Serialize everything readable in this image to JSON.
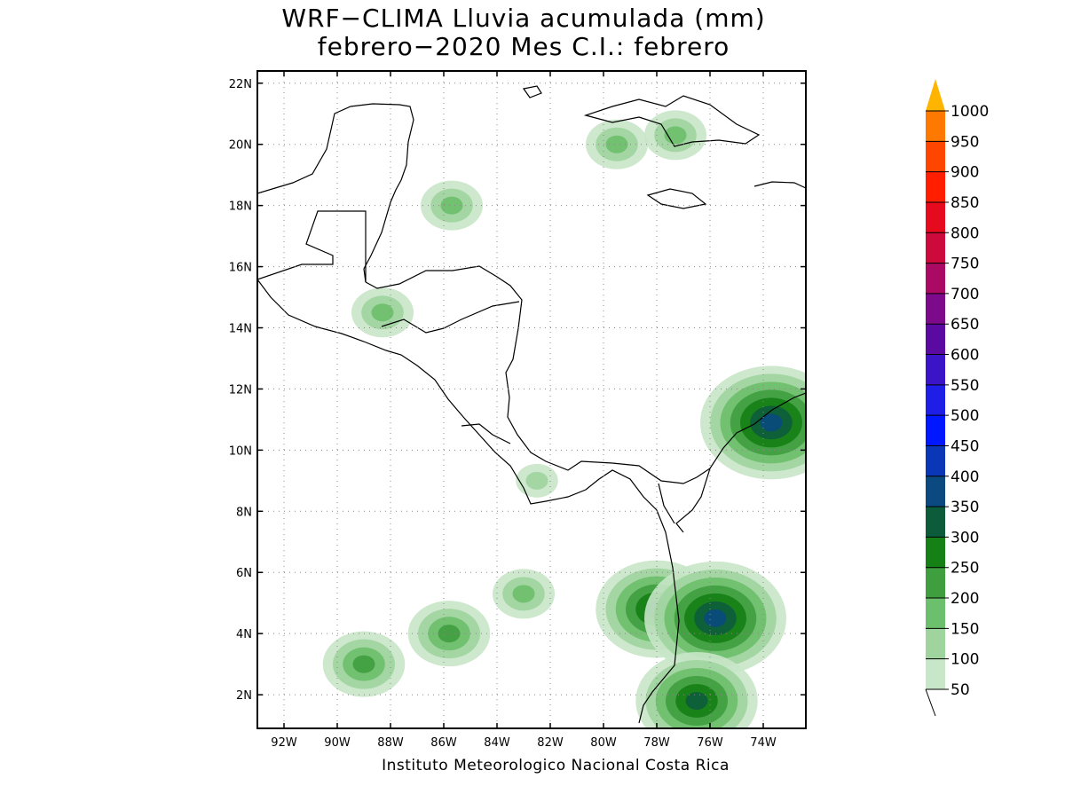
{
  "title": {
    "line1": "WRF−CLIMA Lluvia acumulada (mm)",
    "line2": "febrero−2020 Mes C.I.: febrero"
  },
  "credit": "Instituto Meteorologico Nacional Costa Rica",
  "map": {
    "lon_range": [
      -93.0,
      -72.4
    ],
    "lat_range": [
      0.9,
      22.4
    ],
    "lat_ticks": [
      {
        "value": 22,
        "label": "22N"
      },
      {
        "value": 20,
        "label": "20N"
      },
      {
        "value": 18,
        "label": "18N"
      },
      {
        "value": 16,
        "label": "16N"
      },
      {
        "value": 14,
        "label": "14N"
      },
      {
        "value": 12,
        "label": "12N"
      },
      {
        "value": 10,
        "label": "10N"
      },
      {
        "value": 8,
        "label": "8N"
      },
      {
        "value": 6,
        "label": "6N"
      },
      {
        "value": 4,
        "label": "4N"
      },
      {
        "value": 2,
        "label": "2N"
      }
    ],
    "lon_ticks": [
      {
        "value": -92,
        "label": "92W"
      },
      {
        "value": -90,
        "label": "90W"
      },
      {
        "value": -88,
        "label": "88W"
      },
      {
        "value": -86,
        "label": "86W"
      },
      {
        "value": -84,
        "label": "84W"
      },
      {
        "value": -82,
        "label": "82W"
      },
      {
        "value": -80,
        "label": "80W"
      },
      {
        "value": -78,
        "label": "78W"
      },
      {
        "value": -76,
        "label": "76W"
      },
      {
        "value": -74,
        "label": "74W"
      }
    ],
    "grid": "dotted"
  },
  "colorbar": {
    "levels": [
      "50",
      "100",
      "150",
      "200",
      "250",
      "300",
      "350",
      "400",
      "450",
      "500",
      "550",
      "600",
      "650",
      "700",
      "750",
      "800",
      "850",
      "900",
      "950",
      "1000"
    ],
    "colors": [
      "#c8e6c8",
      "#9fd49f",
      "#6cbf6c",
      "#3f9f3f",
      "#158015",
      "#0c5c3c",
      "#0a4a80",
      "#0a36b8",
      "#0018ff",
      "#1e1ee6",
      "#3c14c8",
      "#5a0aa0",
      "#7d0a8a",
      "#aa0a64",
      "#cc0a3c",
      "#e60a1e",
      "#ff1e00",
      "#ff4600",
      "#ff7800",
      "#ffa000",
      "#ffb400"
    ],
    "arrow": "triangular top, open bottom"
  },
  "rain_cells": [
    {
      "lon": -83.0,
      "lat": 5.3,
      "level": 2
    },
    {
      "lon": -78.0,
      "lat": 4.8,
      "level": 5
    },
    {
      "lon": -89.0,
      "lat": 3.0,
      "level": 3
    },
    {
      "lon": -85.8,
      "lat": 4.0,
      "level": 3
    },
    {
      "lon": -75.8,
      "lat": 4.5,
      "level": 6
    },
    {
      "lon": -76.5,
      "lat": 1.8,
      "level": 5
    },
    {
      "lon": -77.3,
      "lat": 20.3,
      "level": 2
    },
    {
      "lon": -79.5,
      "lat": 20.0,
      "level": 2
    },
    {
      "lon": -85.7,
      "lat": 18.0,
      "level": 2
    },
    {
      "lon": -88.3,
      "lat": 14.5,
      "level": 2
    },
    {
      "lon": -82.5,
      "lat": 9.0,
      "level": 1
    },
    {
      "lon": -73.7,
      "lat": 10.9,
      "level": 6
    }
  ]
}
